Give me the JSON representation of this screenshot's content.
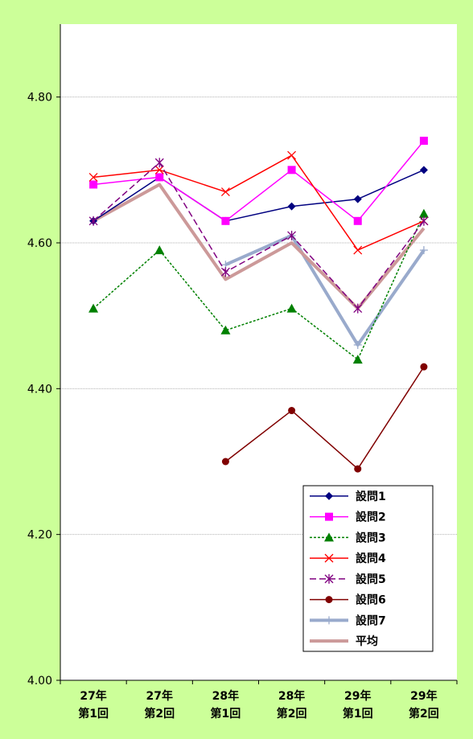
{
  "chart_data": {
    "type": "line",
    "categories": [
      [
        "27年",
        "第1回"
      ],
      [
        "27年",
        "第2回"
      ],
      [
        "28年",
        "第1回"
      ],
      [
        "28年",
        "第2回"
      ],
      [
        "29年",
        "第1回"
      ],
      [
        "29年",
        "第2回"
      ]
    ],
    "ylim": [
      4.0,
      4.9
    ],
    "yticks": [
      "4.00",
      "4.20",
      "4.40",
      "4.60",
      "4.80"
    ],
    "ytick_values": [
      4.0,
      4.2,
      4.4,
      4.6,
      4.8
    ],
    "grid": true,
    "legend_position": "bottom-right",
    "series": [
      {
        "name": "設問1",
        "color": "#000080",
        "marker": "diamond",
        "dash": "solid",
        "width": "thin",
        "values": [
          4.63,
          4.69,
          4.63,
          4.65,
          4.66,
          4.7
        ]
      },
      {
        "name": "設問2",
        "color": "#ff00ff",
        "marker": "square",
        "dash": "solid",
        "width": "thin",
        "values": [
          4.68,
          4.69,
          4.63,
          4.7,
          4.63,
          4.74
        ]
      },
      {
        "name": "設問3",
        "color": "#008000",
        "marker": "triangle",
        "dash": "dotted",
        "width": "thin",
        "values": [
          4.51,
          4.59,
          4.48,
          4.51,
          4.44,
          4.64
        ]
      },
      {
        "name": "設問4",
        "color": "#ff0000",
        "marker": "x",
        "dash": "solid",
        "width": "thin",
        "values": [
          4.69,
          4.7,
          4.67,
          4.72,
          4.59,
          4.63
        ]
      },
      {
        "name": "設問5",
        "color": "#800080",
        "marker": "star",
        "dash": "dashed",
        "width": "thin",
        "values": [
          4.63,
          4.71,
          4.56,
          4.61,
          4.51,
          4.63
        ]
      },
      {
        "name": "設問6",
        "color": "#800000",
        "marker": "circle",
        "dash": "solid",
        "width": "thin",
        "values": [
          null,
          null,
          4.3,
          4.37,
          4.29,
          4.43
        ]
      },
      {
        "name": "設問7",
        "color": "#99aacc",
        "marker": "plus",
        "dash": "solid",
        "width": "thick",
        "values": [
          null,
          null,
          4.57,
          4.61,
          4.46,
          4.59
        ]
      },
      {
        "name": "平均",
        "color": "#cc9999",
        "marker": "none",
        "dash": "solid",
        "width": "thick",
        "values": [
          4.63,
          4.68,
          4.55,
          4.6,
          4.51,
          4.62
        ]
      }
    ]
  }
}
